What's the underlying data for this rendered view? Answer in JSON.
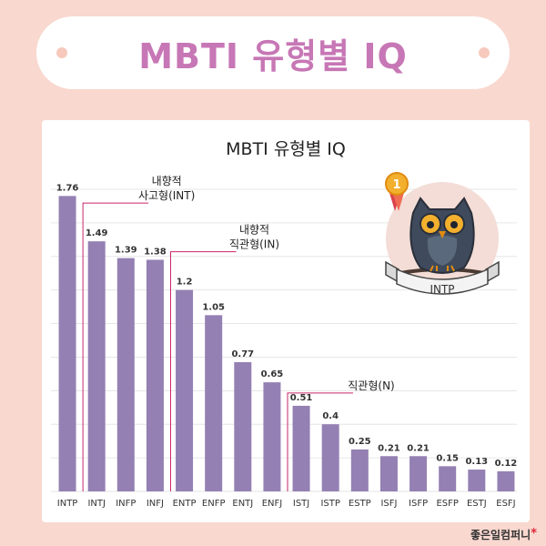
{
  "banner": {
    "title": "MBTI 유형별 IQ"
  },
  "footer": {
    "brand": "좋은일컴퍼니",
    "star": "*"
  },
  "badge": {
    "rank": "1",
    "label": "INTP"
  },
  "colors": {
    "bar": "#9480b3",
    "annotation_line": "#c9266b",
    "grid": "#e6e6e6"
  },
  "chart_data": {
    "type": "bar",
    "title": "MBTI 유형별 IQ",
    "xlabel": "",
    "ylabel": "",
    "ylim": [
      0,
      1.8
    ],
    "yticks": [
      0,
      0.2,
      0.4,
      0.6,
      0.8,
      1,
      1.2,
      1.4,
      1.6,
      1.8
    ],
    "yticklabels": [
      "0",
      "0.2",
      "0.4",
      "0.6",
      "0.8",
      "1",
      "1.2",
      "1.4",
      "1.6",
      "1.8"
    ],
    "grid": true,
    "categories": [
      "INTP",
      "INTJ",
      "INFP",
      "INFJ",
      "ENTP",
      "ENFP",
      "ENTJ",
      "ENFJ",
      "ISTJ",
      "ISTP",
      "ESTP",
      "ISFJ",
      "ISFP",
      "ESFP",
      "ESTJ",
      "ESFJ"
    ],
    "values": [
      1.76,
      1.49,
      1.39,
      1.38,
      1.2,
      1.05,
      0.77,
      0.65,
      0.51,
      0.4,
      0.25,
      0.21,
      0.21,
      0.15,
      0.13,
      0.12
    ],
    "value_labels": [
      "1.76",
      "1.49",
      "1.39",
      "1.38",
      "1.2",
      "1.05",
      "0.77",
      "0.65",
      "0.51",
      "0.4",
      "0.25",
      "0.21",
      "0.21",
      "0.15",
      "0.13",
      "0.12"
    ],
    "annotations": [
      {
        "lines": [
          "내향적",
          "사고형(INT)"
        ],
        "category": "INTJ"
      },
      {
        "lines": [
          "내향적",
          "직관형(IN)"
        ],
        "category": "ENTP"
      },
      {
        "lines": [
          "직관형(N)"
        ],
        "category": "ISTJ"
      }
    ]
  }
}
